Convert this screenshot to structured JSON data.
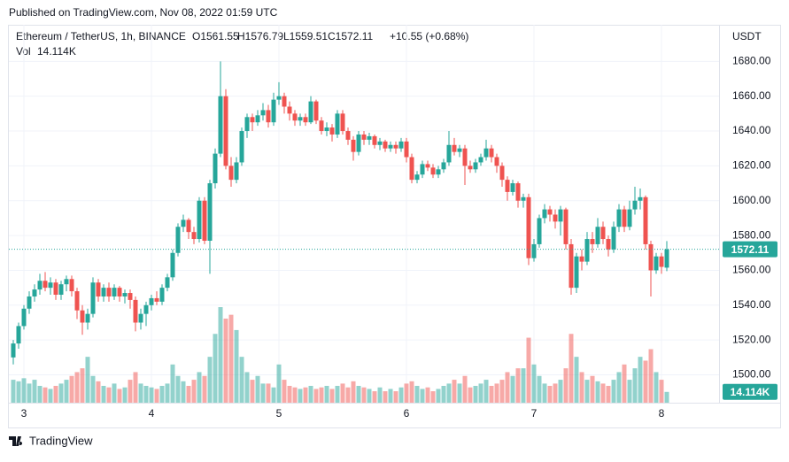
{
  "chart_data": {
    "type": "candlestick",
    "published": "Published on TradingView.com, Nov 08, 2022 01:59 UTC",
    "symbol": "Ethereum / TetherUS, 1h, BINANCE",
    "ohlc_labels": [
      "O1561.55",
      "H1576.79",
      "L1559.51",
      "C1572.11"
    ],
    "change_label": "+10.55 (+0.68%)",
    "currency": "USDT",
    "volume_name": "Vol",
    "volume_label": "14.114K",
    "last_price_label": "1572.11",
    "brand": "TradingView",
    "up_color": "#26a69a",
    "down_color": "#ef5350",
    "grid": true,
    "ylim": [
      1484,
      1701
    ],
    "yticks": [
      {
        "value": 1500,
        "label": "1500.00"
      },
      {
        "value": 1520,
        "label": "1520.00"
      },
      {
        "value": 1540,
        "label": "1540.00"
      },
      {
        "value": 1560,
        "label": "1560.00"
      },
      {
        "value": 1580,
        "label": "1580.00"
      },
      {
        "value": 1600,
        "label": "1600.00"
      },
      {
        "value": 1620,
        "label": "1620.00"
      },
      {
        "value": 1640,
        "label": "1640.00"
      },
      {
        "value": 1660,
        "label": "1660.00"
      },
      {
        "value": 1680,
        "label": "1680.00"
      }
    ],
    "categories": [
      null,
      null,
      "3",
      null,
      null,
      null,
      null,
      null,
      null,
      null,
      null,
      null,
      null,
      null,
      null,
      null,
      null,
      null,
      null,
      null,
      null,
      null,
      null,
      null,
      null,
      null,
      "4",
      null,
      null,
      null,
      null,
      null,
      null,
      null,
      null,
      null,
      null,
      null,
      null,
      null,
      null,
      null,
      null,
      null,
      null,
      null,
      null,
      null,
      null,
      null,
      "5",
      null,
      null,
      null,
      null,
      null,
      null,
      null,
      null,
      null,
      null,
      null,
      null,
      null,
      null,
      null,
      null,
      null,
      null,
      null,
      null,
      null,
      null,
      null,
      "6",
      null,
      null,
      null,
      null,
      null,
      null,
      null,
      null,
      null,
      null,
      null,
      null,
      null,
      null,
      null,
      null,
      null,
      null,
      null,
      null,
      null,
      null,
      null,
      "7",
      null,
      null,
      null,
      null,
      null,
      null,
      null,
      null,
      null,
      null,
      null,
      null,
      null,
      null,
      null,
      null,
      null,
      null,
      null,
      null,
      null,
      null,
      null,
      "8",
      null
    ],
    "open": [
      1510,
      1518,
      1528,
      1538,
      1545,
      1549,
      1554,
      1550,
      1553,
      1546,
      1552,
      1555,
      1548,
      1537,
      1530,
      1535,
      1553,
      1545,
      1550,
      1545,
      1550,
      1545,
      1547,
      1543,
      1530,
      1535,
      1540,
      1544,
      1542,
      1550,
      1556,
      1570,
      1585,
      1589,
      1582,
      1578,
      1600,
      1577,
      1610,
      1627,
      1660,
      1620,
      1612,
      1622,
      1640,
      1648,
      1645,
      1649,
      1652,
      1645,
      1658,
      1660,
      1654,
      1650,
      1646,
      1648,
      1645,
      1657,
      1646,
      1640,
      1642,
      1638,
      1650,
      1640,
      1635,
      1628,
      1638,
      1635,
      1637,
      1632,
      1634,
      1630,
      1632,
      1630,
      1634,
      1625,
      1612,
      1615,
      1621,
      1619,
      1615,
      1618,
      1622,
      1632,
      1628,
      1630,
      1620,
      1618,
      1622,
      1625,
      1630,
      1625,
      1620,
      1612,
      1605,
      1610,
      1600,
      1602,
      1567,
      1575,
      1590,
      1595,
      1592,
      1588,
      1595,
      1575,
      1550,
      1568,
      1565,
      1578,
      1575,
      1585,
      1578,
      1572,
      1585,
      1595,
      1585,
      1595,
      1600,
      1602,
      1575,
      1560,
      1568,
      1561.55
    ],
    "high": [
      1520,
      1530,
      1540,
      1548,
      1552,
      1558,
      1559,
      1556,
      1555,
      1554,
      1557,
      1557,
      1550,
      1540,
      1538,
      1556,
      1555,
      1552,
      1553,
      1552,
      1551,
      1549,
      1549,
      1545,
      1538,
      1542,
      1546,
      1548,
      1552,
      1558,
      1572,
      1587,
      1592,
      1590,
      1585,
      1602,
      1602,
      1612,
      1630,
      1680,
      1664,
      1625,
      1625,
      1642,
      1650,
      1650,
      1652,
      1656,
      1655,
      1662,
      1668,
      1662,
      1657,
      1652,
      1650,
      1650,
      1660,
      1658,
      1648,
      1645,
      1644,
      1652,
      1652,
      1642,
      1637,
      1640,
      1640,
      1639,
      1638,
      1636,
      1635,
      1634,
      1634,
      1636,
      1636,
      1627,
      1617,
      1623,
      1623,
      1621,
      1620,
      1624,
      1640,
      1636,
      1632,
      1632,
      1623,
      1624,
      1627,
      1635,
      1632,
      1627,
      1622,
      1614,
      1612,
      1611,
      1604,
      1604,
      1578,
      1592,
      1598,
      1597,
      1595,
      1597,
      1596,
      1578,
      1570,
      1572,
      1582,
      1582,
      1590,
      1588,
      1580,
      1588,
      1598,
      1597,
      1600,
      1608,
      1607,
      1603,
      1577,
      1570,
      1570,
      1576.79
    ],
    "low": [
      1506,
      1515,
      1526,
      1535,
      1542,
      1546,
      1548,
      1546,
      1543,
      1543,
      1548,
      1545,
      1532,
      1523,
      1526,
      1533,
      1542,
      1542,
      1542,
      1543,
      1542,
      1541,
      1538,
      1525,
      1526,
      1528,
      1537,
      1540,
      1540,
      1548,
      1554,
      1568,
      1582,
      1578,
      1575,
      1576,
      1575,
      1558,
      1607,
      1625,
      1618,
      1608,
      1610,
      1620,
      1636,
      1640,
      1643,
      1646,
      1642,
      1643,
      1655,
      1650,
      1646,
      1643,
      1643,
      1643,
      1644,
      1644,
      1638,
      1637,
      1634,
      1636,
      1638,
      1632,
      1623,
      1626,
      1632,
      1632,
      1630,
      1629,
      1628,
      1628,
      1627,
      1628,
      1622,
      1610,
      1610,
      1613,
      1617,
      1613,
      1613,
      1616,
      1620,
      1626,
      1625,
      1609,
      1616,
      1616,
      1620,
      1623,
      1622,
      1616,
      1608,
      1600,
      1603,
      1596,
      1596,
      1563,
      1565,
      1573,
      1587,
      1588,
      1584,
      1580,
      1572,
      1546,
      1547,
      1560,
      1563,
      1570,
      1573,
      1575,
      1568,
      1570,
      1582,
      1582,
      1583,
      1592,
      1595,
      1572,
      1545,
      1558,
      1558,
      1559.51
    ],
    "close": [
      1518,
      1528,
      1538,
      1545,
      1549,
      1554,
      1550,
      1553,
      1546,
      1552,
      1555,
      1548,
      1537,
      1530,
      1535,
      1553,
      1545,
      1550,
      1545,
      1550,
      1545,
      1547,
      1543,
      1530,
      1535,
      1540,
      1544,
      1542,
      1550,
      1556,
      1570,
      1585,
      1589,
      1582,
      1578,
      1600,
      1577,
      1610,
      1627,
      1660,
      1620,
      1612,
      1622,
      1640,
      1648,
      1645,
      1649,
      1652,
      1645,
      1658,
      1660,
      1654,
      1650,
      1646,
      1648,
      1645,
      1657,
      1646,
      1640,
      1642,
      1638,
      1650,
      1640,
      1635,
      1628,
      1638,
      1635,
      1637,
      1632,
      1634,
      1630,
      1632,
      1630,
      1634,
      1625,
      1612,
      1615,
      1621,
      1619,
      1615,
      1618,
      1622,
      1632,
      1628,
      1630,
      1620,
      1618,
      1622,
      1625,
      1630,
      1625,
      1620,
      1612,
      1605,
      1610,
      1600,
      1602,
      1567,
      1575,
      1590,
      1595,
      1592,
      1588,
      1595,
      1575,
      1550,
      1568,
      1565,
      1578,
      1575,
      1585,
      1578,
      1572,
      1585,
      1595,
      1585,
      1595,
      1600,
      1602,
      1575,
      1560,
      1568,
      1562,
      1572.11
    ],
    "volume": [
      30,
      28,
      32,
      25,
      30,
      22,
      20,
      18,
      22,
      25,
      30,
      35,
      40,
      45,
      60,
      35,
      28,
      22,
      20,
      25,
      18,
      20,
      30,
      40,
      25,
      22,
      20,
      18,
      22,
      25,
      50,
      35,
      28,
      22,
      30,
      40,
      35,
      60,
      90,
      125,
      110,
      115,
      95,
      60,
      40,
      30,
      35,
      25,
      25,
      20,
      50,
      30,
      22,
      20,
      18,
      20,
      22,
      18,
      20,
      22,
      18,
      22,
      25,
      20,
      28,
      22,
      20,
      18,
      15,
      20,
      15,
      18,
      15,
      20,
      25,
      28,
      22,
      18,
      20,
      15,
      18,
      22,
      25,
      30,
      25,
      35,
      20,
      22,
      25,
      30,
      22,
      25,
      30,
      40,
      35,
      45,
      45,
      85,
      50,
      35,
      25,
      22,
      25,
      30,
      45,
      90,
      60,
      40,
      30,
      35,
      28,
      25,
      22,
      30,
      40,
      50,
      30,
      45,
      60,
      55,
      70,
      40,
      30,
      14.114
    ]
  }
}
